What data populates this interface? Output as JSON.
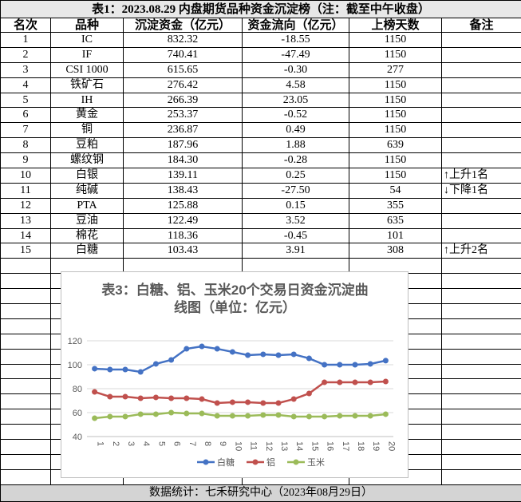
{
  "table": {
    "title": "表1：2023.08.29 内盘期货品种资金沉淀榜（注：截至中午收盘）",
    "header": [
      "名次",
      "品种",
      "沉淀资金（亿元）",
      "资金流向（亿元）",
      "上榜天数",
      "备注"
    ],
    "rows": [
      [
        "1",
        "IC",
        "832.32",
        "-18.55",
        "1150"
      ],
      [
        "2",
        "IF",
        "740.41",
        "-47.49",
        "1150"
      ],
      [
        "3",
        "CSI 1000",
        "615.65",
        "-0.30",
        "277"
      ],
      [
        "4",
        "铁矿石",
        "276.42",
        "4.58",
        "1150"
      ],
      [
        "5",
        "IH",
        "266.39",
        "23.05",
        "1150"
      ],
      [
        "6",
        "黄金",
        "253.37",
        "-0.52",
        "1150"
      ],
      [
        "7",
        "铜",
        "236.87",
        "0.49",
        "1150"
      ],
      [
        "8",
        "豆粕",
        "187.96",
        "1.88",
        "639"
      ],
      [
        "9",
        "螺纹钢",
        "184.30",
        "-0.28",
        "1150"
      ],
      [
        "10",
        "白银",
        "139.11",
        "0.25",
        "1150",
        "↑上升1名"
      ],
      [
        "11",
        "纯碱",
        "138.43",
        "-27.50",
        "54",
        "↓下降1名"
      ],
      [
        "12",
        "PTA",
        "125.88",
        "0.15",
        "355"
      ],
      [
        "13",
        "豆油",
        "122.49",
        "3.52",
        "635"
      ],
      [
        "14",
        "棉花",
        "118.36",
        "-0.45",
        "101"
      ],
      [
        "15",
        "白糖",
        "103.43",
        "3.91",
        "308",
        "↑上升2名"
      ]
    ],
    "footer": "数据统计：七禾研究中心（2023年08月29日）"
  },
  "chart_data": {
    "type": "line",
    "title": "表3：白糖、铝、玉米20个交易日资金沉淀曲线图（单位：亿元）",
    "categories": [
      "1",
      "2",
      "3",
      "4",
      "5",
      "6",
      "7",
      "8",
      "9",
      "10",
      "11",
      "12",
      "13",
      "14",
      "15",
      "16",
      "17",
      "18",
      "19",
      "20"
    ],
    "series": [
      {
        "name": "白糖",
        "color": "#4472c4",
        "values": [
          96.7,
          96,
          96,
          94,
          100.7,
          104,
          113.3,
          115.3,
          113.3,
          110.7,
          108,
          108.7,
          108,
          108.7,
          105.3,
          100,
          100,
          100,
          100.7,
          103.43
        ]
      },
      {
        "name": "铝",
        "color": "#c0504d",
        "values": [
          77.3,
          73.3,
          73.3,
          72,
          72.7,
          72,
          72,
          71.3,
          68,
          68.7,
          68.7,
          68,
          68,
          71.3,
          76,
          85.3,
          85.3,
          85.3,
          85.3,
          86
        ]
      },
      {
        "name": "玉米",
        "color": "#9bbb59",
        "values": [
          55.3,
          56.7,
          56.7,
          58.7,
          58.7,
          60,
          59.3,
          59.3,
          57.3,
          57.3,
          57.3,
          58,
          58,
          56.7,
          56.7,
          56.7,
          57.3,
          57.3,
          57.3,
          58.7
        ]
      }
    ],
    "ylim": [
      40,
      120
    ],
    "yticks": [
      40,
      60,
      80,
      100,
      120
    ],
    "grid": true,
    "legend": "bottom"
  }
}
